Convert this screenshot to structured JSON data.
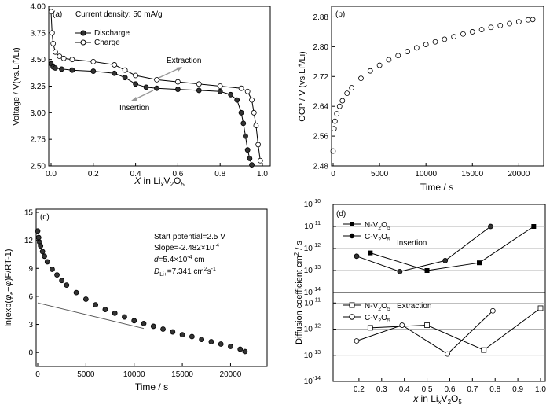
{
  "chart_data": [
    {
      "panel": "(a)",
      "type": "line",
      "xlabel": "X in LixV2O5",
      "ylabel": "Voltage / V(vs.Li+/Li)",
      "xlim": [
        0.0,
        1.0
      ],
      "ylim": [
        2.5,
        4.0
      ],
      "xticks": [
        "0.0",
        "0.2",
        "0.4",
        "0.6",
        "0.8",
        "1.0"
      ],
      "yticks": [
        "2.50",
        "2.75",
        "3.00",
        "3.25",
        "3.50",
        "3.75",
        "4.00"
      ],
      "annotations": [
        "Current density: 50 mA/g",
        "Extraction",
        "Insertion"
      ],
      "legend_position": "top",
      "series": [
        {
          "name": "Discharge",
          "marker": "filled-circle",
          "x": [
            0.0,
            0.01,
            0.02,
            0.05,
            0.1,
            0.2,
            0.3,
            0.35,
            0.4,
            0.45,
            0.5,
            0.6,
            0.7,
            0.8,
            0.85,
            0.88,
            0.9,
            0.91,
            0.92,
            0.93,
            0.94,
            0.95
          ],
          "y": [
            3.46,
            3.43,
            3.42,
            3.41,
            3.4,
            3.39,
            3.37,
            3.33,
            3.27,
            3.24,
            3.23,
            3.22,
            3.21,
            3.2,
            3.17,
            3.12,
            3.0,
            2.9,
            2.78,
            2.65,
            2.57,
            2.51
          ]
        },
        {
          "name": "Charge",
          "marker": "open-circle",
          "x": [
            0.0,
            0.005,
            0.01,
            0.02,
            0.04,
            0.06,
            0.1,
            0.2,
            0.3,
            0.35,
            0.4,
            0.5,
            0.6,
            0.7,
            0.8,
            0.9,
            0.93,
            0.95,
            0.96,
            0.97,
            0.98,
            0.99
          ],
          "y": [
            3.95,
            3.75,
            3.65,
            3.57,
            3.53,
            3.51,
            3.5,
            3.48,
            3.45,
            3.4,
            3.35,
            3.31,
            3.29,
            3.27,
            3.25,
            3.23,
            3.2,
            3.12,
            3.0,
            2.88,
            2.7,
            2.55
          ]
        }
      ]
    },
    {
      "panel": "(b)",
      "type": "scatter",
      "xlabel": "Time / s",
      "ylabel": "OCP / V (vs.Li+/Li)",
      "xlim": [
        0,
        22000
      ],
      "ylim": [
        2.48,
        2.9
      ],
      "xticks": [
        "0",
        "5000",
        "10000",
        "15000",
        "20000"
      ],
      "yticks": [
        "2.48",
        "2.56",
        "2.64",
        "2.72",
        "2.80",
        "2.88"
      ],
      "series": [
        {
          "marker": "open-circle",
          "x": [
            0,
            100,
            200,
            400,
            700,
            1000,
            1500,
            2000,
            3000,
            4000,
            5000,
            6000,
            7000,
            8000,
            9000,
            10000,
            11000,
            12000,
            13000,
            14000,
            15000,
            16000,
            17000,
            18000,
            19000,
            20000,
            21000,
            21500
          ],
          "y": [
            2.52,
            2.58,
            2.6,
            2.62,
            2.64,
            2.655,
            2.675,
            2.69,
            2.715,
            2.735,
            2.75,
            2.765,
            2.776,
            2.787,
            2.797,
            2.806,
            2.813,
            2.82,
            2.827,
            2.834,
            2.84,
            2.846,
            2.852,
            2.857,
            2.862,
            2.867,
            2.872,
            2.873
          ]
        }
      ]
    },
    {
      "panel": "(c)",
      "type": "scatter",
      "xlabel": "Time / s",
      "ylabel": "ln(exp(φe−φ)F/RT-1)",
      "xlim": [
        0,
        22000
      ],
      "ylim": [
        -1.5,
        15
      ],
      "xticks": [
        "0",
        "5000",
        "10000",
        "15000",
        "20000"
      ],
      "yticks": [
        "0",
        "3",
        "6",
        "9",
        "12",
        "15"
      ],
      "annotations": [
        "Start potential=2.5 V",
        "Slope=-2.482×10-4",
        "d=5.4×10-4 cm",
        "DLi+=7.341 cm2s-1"
      ],
      "series": [
        {
          "marker": "filled-circle",
          "x": [
            0,
            100,
            200,
            300,
            500,
            700,
            1000,
            1500,
            2000,
            2500,
            3000,
            4000,
            5000,
            6000,
            7000,
            8000,
            9000,
            10000,
            11000,
            12000,
            13000,
            14000,
            15000,
            16000,
            17000,
            18000,
            19000,
            20000,
            21000,
            21500
          ],
          "y": [
            13.0,
            12.3,
            11.8,
            11.4,
            10.8,
            10.3,
            9.7,
            8.9,
            8.3,
            7.7,
            7.2,
            6.4,
            5.7,
            5.1,
            4.6,
            4.2,
            3.8,
            3.4,
            3.1,
            2.8,
            2.5,
            2.2,
            1.9,
            1.7,
            1.4,
            1.15,
            0.9,
            0.65,
            0.35,
            0.1
          ]
        },
        {
          "name": "fit",
          "marker": "none",
          "x": [
            0,
            11000
          ],
          "y": [
            5.3,
            2.57
          ]
        }
      ]
    },
    {
      "panel": "(d)",
      "type": "line",
      "xlabel": "x in LixV2O5",
      "ylabel": "Diffusion coefficient cm2 / s",
      "xlim": [
        0.1,
        1.0
      ],
      "xticks": [
        "0.2",
        "0.3",
        "0.4",
        "0.5",
        "0.6",
        "0.7",
        "0.8",
        "0.9",
        "1.0"
      ],
      "log_scale_y": true,
      "subplots": [
        {
          "label": "Insertion",
          "ylim": [
            -14,
            -10
          ],
          "yticks": [
            "10-10",
            "10-11",
            "10-12",
            "10-13",
            "10-14"
          ],
          "series": [
            {
              "name": "N-V2O5",
              "marker": "filled-square",
              "x": [
                0.25,
                0.5,
                0.73,
                0.97
              ],
              "y": [
                -12.2,
                -13.0,
                -12.65,
                -11.0
              ]
            },
            {
              "name": "C-V2O5",
              "marker": "filled-circle",
              "x": [
                0.19,
                0.38,
                0.58,
                0.78
              ],
              "y": [
                -12.35,
                -13.05,
                -12.55,
                -11.0
              ]
            }
          ]
        },
        {
          "label": "Extraction",
          "ylim": [
            -14,
            -10
          ],
          "yticks": [
            "10-11",
            "10-12",
            "10-13",
            "10-14"
          ],
          "series": [
            {
              "name": "N-V2O5",
              "marker": "open-square",
              "x": [
                0.25,
                0.5,
                0.75,
                1.0
              ],
              "y": [
                -11.95,
                -11.85,
                -12.8,
                -11.2
              ]
            },
            {
              "name": "C-V2O5",
              "marker": "open-circle",
              "x": [
                0.19,
                0.39,
                0.59,
                0.79
              ],
              "y": [
                -12.45,
                -11.85,
                -12.95,
                -11.3
              ]
            }
          ]
        }
      ]
    }
  ]
}
